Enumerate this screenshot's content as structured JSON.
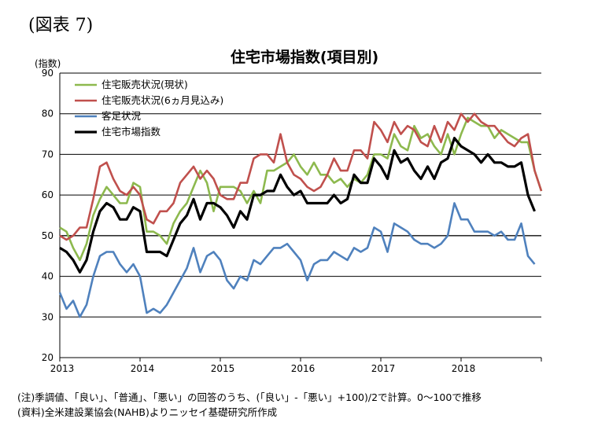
{
  "figure_label": "(図表 7)",
  "chart_data": {
    "type": "line",
    "title": "住宅市場指数(項目別)",
    "ylabel": "(指数)",
    "xlabel": "",
    "ylim": [
      20,
      90
    ],
    "yticks": [
      20,
      30,
      40,
      50,
      60,
      70,
      80,
      90
    ],
    "x_tick_labels": [
      "2013",
      "2014",
      "2015",
      "2016",
      "2017",
      "2018"
    ],
    "x_start": "2013-01",
    "grid": true,
    "reference_line": 50,
    "legend_position": "top-left",
    "series": [
      {
        "name": "住宅販売状況(現状)",
        "color": "#8db94e",
        "values": [
          52,
          51,
          47,
          44,
          48,
          55,
          59,
          62,
          60,
          58,
          58,
          63,
          62,
          51,
          51,
          50,
          48,
          53,
          56,
          58,
          62,
          66,
          63,
          56,
          62,
          62,
          62,
          61,
          58,
          61,
          58,
          66,
          66,
          67,
          68,
          70,
          67,
          65,
          68,
          65,
          65,
          63,
          64,
          62,
          64,
          63,
          65,
          70,
          70,
          69,
          75,
          72,
          71,
          77,
          74,
          75,
          72,
          70,
          75,
          70,
          75,
          79,
          78,
          77,
          77,
          74,
          76,
          75,
          74,
          73,
          73,
          66,
          61
        ]
      },
      {
        "name": "住宅販売状況(6ヵ月見込み)",
        "color": "#c0504d",
        "values": [
          50,
          49,
          50,
          52,
          52,
          59,
          67,
          68,
          64,
          61,
          60,
          62,
          60,
          54,
          53,
          56,
          56,
          58,
          63,
          65,
          67,
          64,
          66,
          64,
          60,
          59,
          59,
          63,
          63,
          69,
          70,
          70,
          68,
          75,
          68,
          65,
          64,
          62,
          61,
          62,
          65,
          69,
          66,
          66,
          71,
          71,
          69,
          78,
          76,
          73,
          78,
          75,
          77,
          76,
          73,
          72,
          77,
          73,
          78,
          76,
          80,
          78,
          80,
          78,
          77,
          77,
          75,
          73,
          72,
          74,
          75,
          66,
          61
        ]
      },
      {
        "name": "客足状況",
        "color": "#4f81bd",
        "values": [
          36,
          32,
          34,
          30,
          33,
          40,
          45,
          46,
          46,
          43,
          41,
          43,
          40,
          31,
          32,
          31,
          33,
          36,
          39,
          42,
          47,
          41,
          45,
          46,
          44,
          39,
          37,
          40,
          39,
          44,
          43,
          45,
          47,
          47,
          48,
          46,
          44,
          39,
          43,
          44,
          44,
          46,
          45,
          44,
          47,
          46,
          47,
          52,
          51,
          46,
          53,
          52,
          51,
          49,
          48,
          48,
          47,
          48,
          50,
          58,
          54,
          54,
          51,
          51,
          51,
          50,
          51,
          49,
          49,
          53,
          45,
          43
        ]
      },
      {
        "name": "住宅市場指数",
        "color": "#000000",
        "values": [
          47,
          46,
          44,
          41,
          44,
          51,
          56,
          58,
          57,
          54,
          54,
          57,
          56,
          46,
          46,
          46,
          45,
          49,
          53,
          55,
          59,
          54,
          58,
          58,
          57,
          55,
          52,
          56,
          54,
          60,
          60,
          61,
          61,
          65,
          62,
          60,
          61,
          58,
          58,
          58,
          58,
          60,
          58,
          59,
          65,
          63,
          63,
          69,
          67,
          64,
          71,
          68,
          69,
          66,
          64,
          67,
          64,
          68,
          69,
          74,
          72,
          71,
          70,
          68,
          70,
          68,
          68,
          67,
          67,
          68,
          60,
          56
        ]
      }
    ]
  },
  "notes": [
    "(注)季調値、「良い」、「普通」、「悪い」の回答のうち、(「良い」-「悪い」+100)/2で計算。0〜100で推移",
    "(資料)全米建設業協会(NAHB)よりニッセイ基礎研究所作成"
  ]
}
